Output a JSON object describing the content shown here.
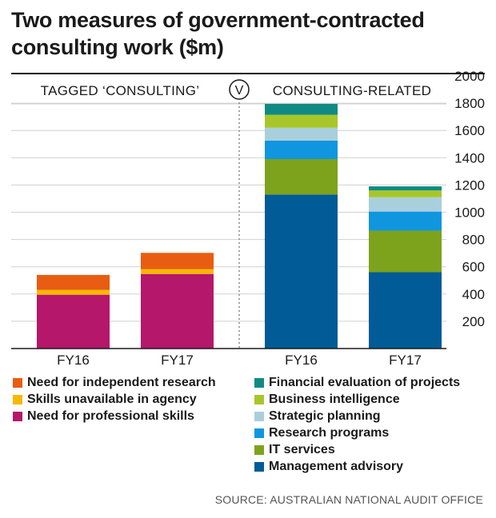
{
  "chart_data": {
    "type": "bar",
    "stacked": true,
    "title": "Two measures of government-contracted consulting work ($m)",
    "panels": [
      {
        "heading": "TAGGED ‘CONSULTING’",
        "categories": [
          "FY16",
          "FY17"
        ],
        "series": [
          {
            "name": "Need for professional skills",
            "color": "#b5176a",
            "values": [
              395,
              547
            ]
          },
          {
            "name": "Skills unavailable in agency",
            "color": "#f7b800",
            "values": [
              35,
              35
            ]
          },
          {
            "name": "Need for independent research",
            "color": "#e85d12",
            "values": [
              110,
              120
            ]
          }
        ]
      },
      {
        "heading": "CONSULTING-RELATED",
        "categories": [
          "FY16",
          "FY17"
        ],
        "series": [
          {
            "name": "Management advisory",
            "color": "#005b96",
            "values": [
              1130,
              560
            ]
          },
          {
            "name": "IT services",
            "color": "#7da21c",
            "values": [
              260,
              305
            ]
          },
          {
            "name": "Research programs",
            "color": "#0f96df",
            "values": [
              135,
              140
            ]
          },
          {
            "name": "Strategic planning",
            "color": "#a9cfdc",
            "values": [
              95,
              105
            ]
          },
          {
            "name": "Business intelligence",
            "color": "#a8c62a",
            "values": [
              95,
              50
            ]
          },
          {
            "name": "Financial evaluation of projects",
            "color": "#0f8a84",
            "values": [
              80,
              30
            ]
          }
        ]
      }
    ],
    "divider_label": "V",
    "y_axis": {
      "ticks": [
        200,
        400,
        600,
        800,
        1000,
        1200,
        1400,
        1600,
        1800,
        2000
      ],
      "ylim": [
        0,
        2000
      ],
      "position": "right"
    },
    "legend": {
      "left": [
        {
          "name": "Need for independent research",
          "color": "#e85d12"
        },
        {
          "name": "Skills unavailable in agency",
          "color": "#f7b800"
        },
        {
          "name": "Need for professional skills",
          "color": "#b5176a"
        }
      ],
      "right": [
        {
          "name": "Financial evaluation of projects",
          "color": "#0f8a84"
        },
        {
          "name": "Business intelligence",
          "color": "#a8c62a"
        },
        {
          "name": "Strategic planning",
          "color": "#a9cfdc"
        },
        {
          "name": "Research programs",
          "color": "#0f96df"
        },
        {
          "name": "IT services",
          "color": "#7da21c"
        },
        {
          "name": "Management advisory",
          "color": "#005b96"
        }
      ]
    }
  },
  "source": "SOURCE: AUSTRALIAN NATIONAL AUDIT OFFICE"
}
